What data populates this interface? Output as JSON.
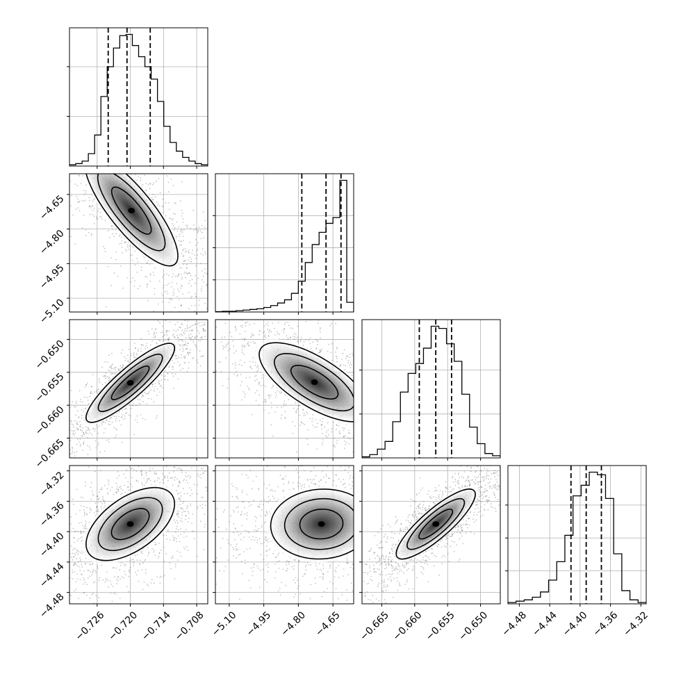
{
  "chart_data": {
    "type": "corner",
    "grid": true,
    "parameters": [
      {
        "ticks": [
          -0.726,
          -0.72,
          -0.714,
          -0.708
        ],
        "tick_labels": [
          "−0.726",
          "−0.720",
          "−0.714",
          "−0.708"
        ],
        "range": [
          -0.731,
          -0.706
        ],
        "quantiles": [
          -0.724,
          -0.7206,
          -0.7164
        ]
      },
      {
        "ticks": [
          -5.1,
          -4.95,
          -4.8,
          -4.65
        ],
        "tick_labels": [
          "−5.10",
          "−4.95",
          "−4.80",
          "−4.65"
        ],
        "range": [
          -5.16,
          -4.56
        ],
        "quantiles": [
          -4.785,
          -4.68,
          -4.615
        ]
      },
      {
        "ticks": [
          -0.665,
          -0.66,
          -0.655,
          -0.65
        ],
        "tick_labels": [
          "−0.665",
          "−0.660",
          "−0.655",
          "−0.650"
        ],
        "range": [
          -0.668,
          -0.647
        ],
        "quantiles": [
          -0.6593,
          -0.6568,
          -0.6544
        ]
      },
      {
        "ticks": [
          -4.48,
          -4.44,
          -4.4,
          -4.36,
          -4.32
        ],
        "tick_labels": [
          "−4.48",
          "−4.44",
          "−4.40",
          "−4.36",
          "−4.32"
        ],
        "range": [
          -4.495,
          -4.313
        ],
        "quantiles": [
          -4.412,
          -4.392,
          -4.372
        ]
      }
    ],
    "histograms": [
      {
        "param": 0,
        "counts": [
          1,
          2,
          4,
          10,
          25,
          56,
          80,
          95,
          105,
          106,
          97,
          88,
          80,
          70,
          52,
          32,
          19,
          12,
          7,
          4,
          2,
          1
        ],
        "peak": 106,
        "yticks": [
          40,
          80
        ]
      },
      {
        "param": 1,
        "counts": [
          0.5,
          1,
          1,
          2,
          3,
          4,
          5,
          7,
          10,
          14,
          19,
          29,
          48,
          77,
          105,
          124,
          138,
          147,
          205,
          15
        ],
        "peak": 205,
        "yticks": [
          50,
          100,
          150
        ]
      },
      {
        "param": 2,
        "counts": [
          1,
          3,
          8,
          15,
          33,
          60,
          77,
          86,
          100,
          120,
          118,
          104,
          88,
          58,
          28,
          13,
          4,
          2
        ],
        "peak": 120,
        "yticks": [
          40,
          80
        ]
      },
      {
        "param": 3,
        "counts": [
          1,
          2,
          3,
          5,
          9,
          18,
          32,
          52,
          82,
          90,
          100,
          98,
          80,
          38,
          10,
          3,
          1
        ],
        "peak": 100,
        "yticks": [
          25,
          50,
          75
        ]
      }
    ],
    "pairs": [
      {
        "x": 0,
        "y": 1,
        "mean": [
          -0.7198,
          -4.72
        ],
        "sigma": [
          0.0042,
          0.12
        ],
        "rho": -0.82
      },
      {
        "x": 0,
        "y": 2,
        "mean": [
          -0.72,
          -0.6566
        ],
        "sigma": [
          0.004,
          0.003
        ],
        "rho": 0.88
      },
      {
        "x": 0,
        "y": 3,
        "mean": [
          -0.72,
          -4.39
        ],
        "sigma": [
          0.004,
          0.024
        ],
        "rho": 0.55
      },
      {
        "x": 1,
        "y": 2,
        "mean": [
          -4.73,
          -0.6565
        ],
        "sigma": [
          0.12,
          0.003
        ],
        "rho": -0.7
      },
      {
        "x": 1,
        "y": 3,
        "mean": [
          -4.7,
          -4.39
        ],
        "sigma": [
          0.11,
          0.023
        ],
        "rho": 0.05
      },
      {
        "x": 2,
        "y": 3,
        "mean": [
          -0.6568,
          -4.39
        ],
        "sigma": [
          0.003,
          0.023
        ],
        "rho": 0.85
      }
    ]
  }
}
